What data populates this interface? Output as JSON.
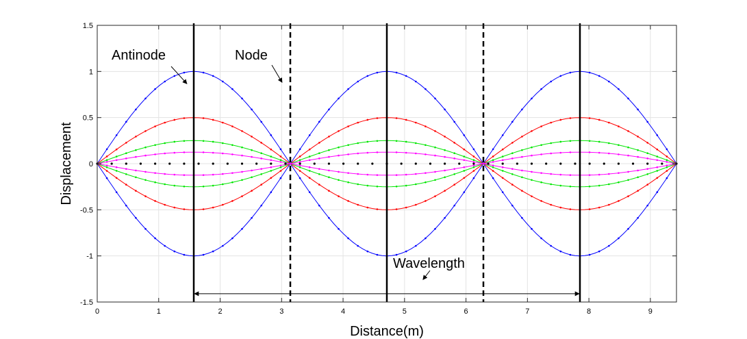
{
  "chart_data": {
    "type": "line",
    "title": "",
    "xlabel": "Distance(m)",
    "ylabel": "Displacement",
    "xlim": [
      0,
      9.4248
    ],
    "ylim": [
      -1.5,
      1.5
    ],
    "grid": true,
    "xticks": [
      0,
      1,
      2,
      3,
      4,
      5,
      6,
      7,
      8,
      9
    ],
    "xtick_labels": [
      "0",
      "1",
      "2",
      "3",
      "4",
      "5",
      "6",
      "7",
      "8",
      "9"
    ],
    "yticks": [
      -1.5,
      -1,
      -0.5,
      0,
      0.5,
      1,
      1.5
    ],
    "ytick_labels": [
      "-1.5",
      "-1",
      "-0.5",
      "0",
      "0.5",
      "1",
      "1.5"
    ],
    "function": "y = A * sin(x)",
    "x_start": 0,
    "x_end": 9.4248,
    "samples": 121,
    "series": [
      {
        "amplitude": 1,
        "color": "#0000ff",
        "style": "solid-dots"
      },
      {
        "amplitude": -1,
        "color": "#0000ff",
        "style": "solid-dots"
      },
      {
        "amplitude": 0.5,
        "color": "#ff0000",
        "style": "solid-dots"
      },
      {
        "amplitude": -0.5,
        "color": "#ff0000",
        "style": "solid-dots"
      },
      {
        "amplitude": 0.25,
        "color": "#00e600",
        "style": "solid-dots"
      },
      {
        "amplitude": -0.25,
        "color": "#00e600",
        "style": "solid-dots"
      },
      {
        "amplitude": 0.125,
        "color": "#ff00ff",
        "style": "solid-dots"
      },
      {
        "amplitude": -0.125,
        "color": "#ff00ff",
        "style": "solid-dots"
      },
      {
        "amplitude": 0,
        "color": "#000000",
        "style": "dotted"
      }
    ],
    "antinode_lines": [
      1.5708,
      4.7124,
      7.854
    ],
    "node_lines": [
      3.1416,
      6.2832
    ],
    "annotations": [
      {
        "text": "Antinode",
        "points_to": [
          1.5708,
          1.0
        ]
      },
      {
        "text": "Node",
        "points_to": [
          3.1416,
          1.0
        ]
      },
      {
        "text": "Wavelength",
        "points_to": [
          5.3,
          -1.25
        ]
      }
    ],
    "wavelength_arrow": {
      "x_from": 1.5708,
      "x_to": 7.854,
      "y": -1.41
    }
  }
}
